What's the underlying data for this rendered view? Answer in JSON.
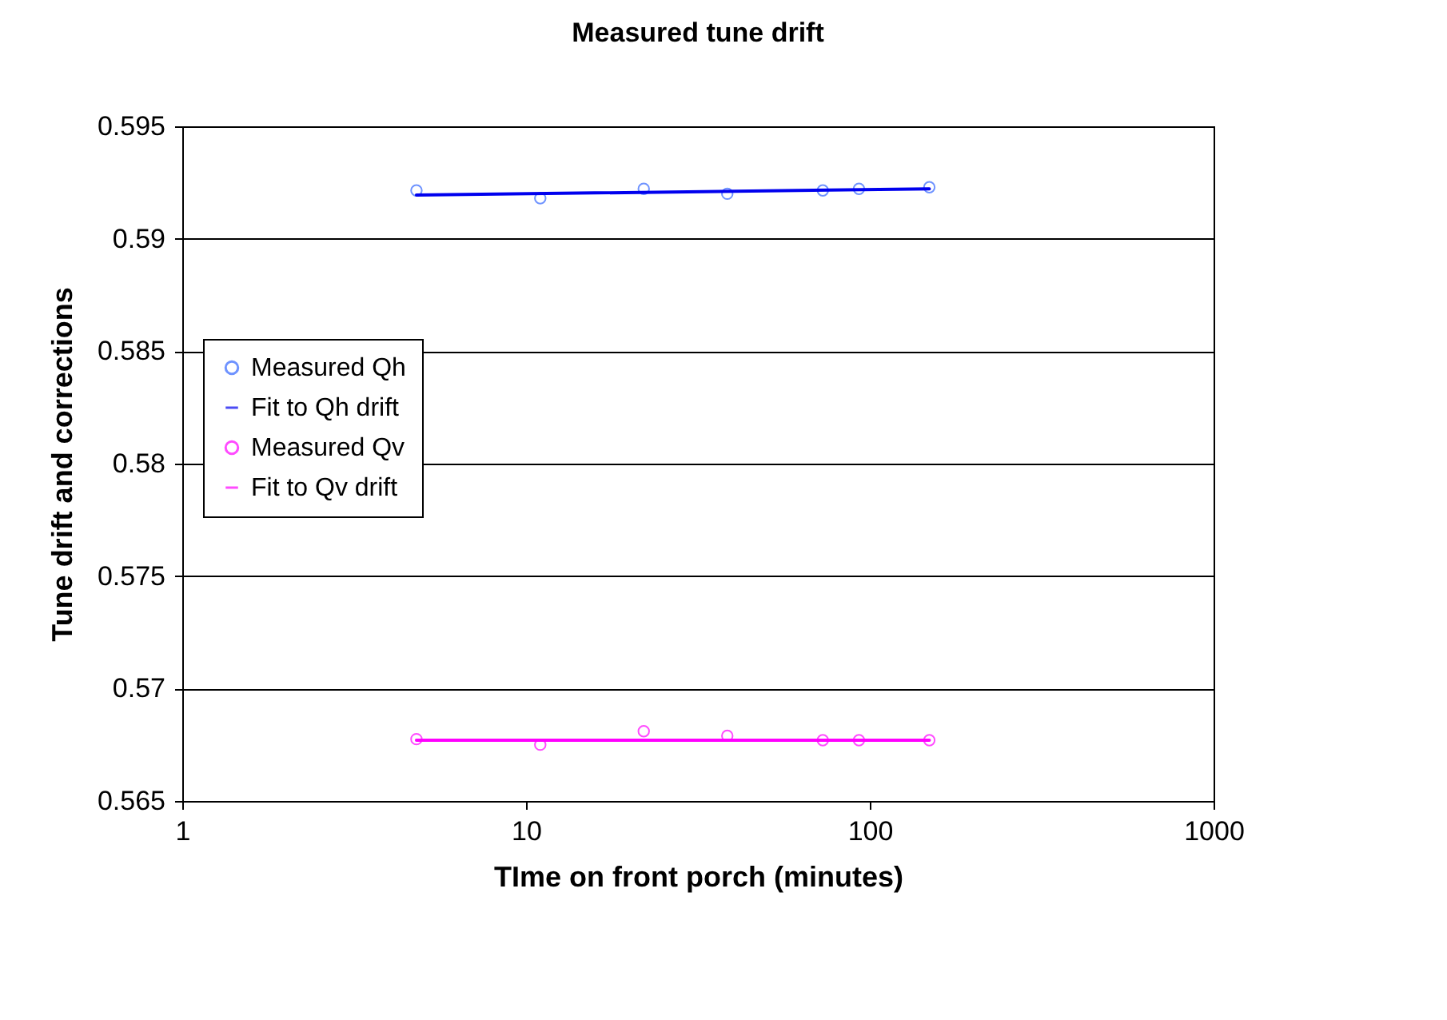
{
  "chart_data": {
    "type": "scatter",
    "title": "Measured tune drift",
    "xlabel": "TIme on front porch (minutes)",
    "ylabel": "Tune drift and corrections",
    "log": "x",
    "xlim": [
      1,
      1000
    ],
    "xticks": [
      1,
      10,
      100,
      1000
    ],
    "ylim": [
      0.565,
      0.595
    ],
    "yticks": [
      0.565,
      0.57,
      0.575,
      0.58,
      0.585,
      0.59,
      0.595
    ],
    "grid": "y",
    "legend": "left",
    "series": [
      {
        "name": "Measured Qh",
        "type": "scatter",
        "marker": "circle",
        "color": "#3366ff",
        "x": [
          4.8,
          11,
          22,
          38.5,
          73,
          93,
          149
        ],
        "values": [
          0.59215,
          0.5918,
          0.59222,
          0.592,
          0.59215,
          0.59222,
          0.59229
        ]
      },
      {
        "name": "Fit to Qh drift",
        "type": "line",
        "marker": "none",
        "color": "#0000ee",
        "x": [
          4.8,
          149
        ],
        "values": [
          0.59194,
          0.59222
        ]
      },
      {
        "name": "Measured Qv",
        "type": "scatter",
        "marker": "circle",
        "color": "#ff00ff",
        "x": [
          4.8,
          11,
          22,
          38.5,
          73,
          93,
          149
        ],
        "values": [
          0.56775,
          0.5675,
          0.5681,
          0.5679,
          0.5677,
          0.5677,
          0.5677
        ]
      },
      {
        "name": "Fit to Qv drift",
        "type": "line",
        "marker": "none",
        "color": "#ff00ff",
        "x": [
          4.8,
          149
        ],
        "values": [
          0.5677,
          0.5677
        ]
      }
    ]
  }
}
